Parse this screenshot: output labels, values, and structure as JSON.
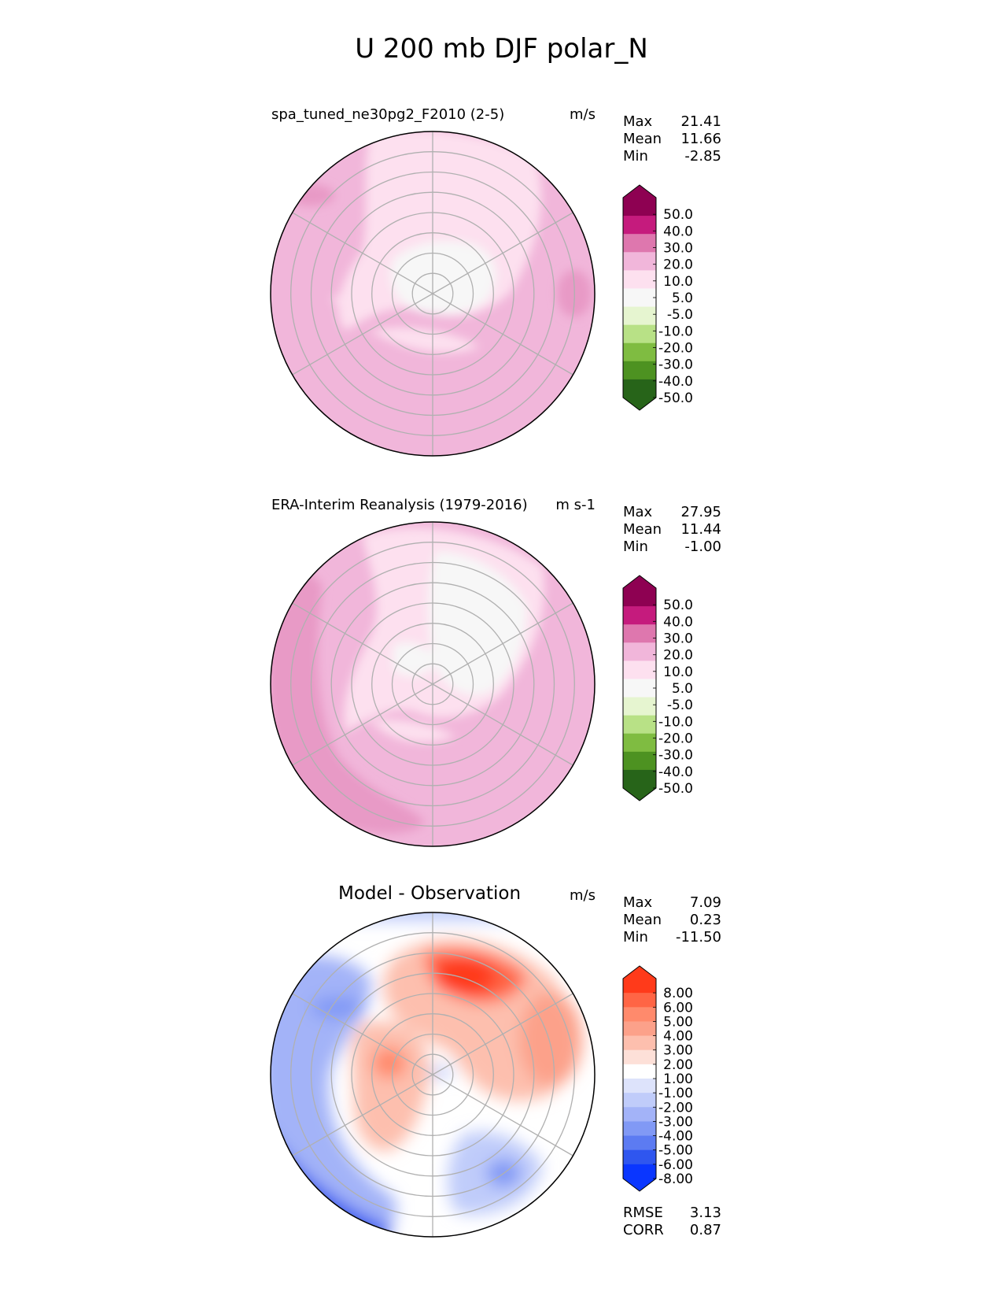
{
  "title": "U 200 mb DJF polar_N",
  "chart_data": [
    {
      "type": "polar-contour-map",
      "title": "spa_tuned_ne30pg2_F2010 (2-5)",
      "units": "m/s",
      "stats": [
        {
          "label": "Max",
          "value": "21.41"
        },
        {
          "label": "Mean",
          "value": "11.66"
        },
        {
          "label": "Min",
          "value": "-2.85"
        }
      ],
      "colorbar": {
        "labels": [
          "50.0",
          "40.0",
          "30.0",
          "20.0",
          "10.0",
          "5.0",
          "-5.0",
          "-10.0",
          "-20.0",
          "-30.0",
          "-40.0",
          "-50.0"
        ],
        "colors": [
          "#8e0152",
          "#c51b7d",
          "#de77ae",
          "#f1b6da",
          "#fde0ef",
          "#f7f7f7",
          "#e6f5d0",
          "#b8e186",
          "#7fbc41",
          "#4d9221",
          "#276419"
        ]
      }
    },
    {
      "type": "polar-contour-map",
      "title": "ERA-Interim Reanalysis (1979-2016)",
      "units": "m s-1",
      "stats": [
        {
          "label": "Max",
          "value": "27.95"
        },
        {
          "label": "Mean",
          "value": "11.44"
        },
        {
          "label": "Min",
          "value": "-1.00"
        }
      ],
      "colorbar": {
        "labels": [
          "50.0",
          "40.0",
          "30.0",
          "20.0",
          "10.0",
          "5.0",
          "-5.0",
          "-10.0",
          "-20.0",
          "-30.0",
          "-40.0",
          "-50.0"
        ],
        "colors": [
          "#8e0152",
          "#c51b7d",
          "#de77ae",
          "#f1b6da",
          "#fde0ef",
          "#f7f7f7",
          "#e6f5d0",
          "#b8e186",
          "#7fbc41",
          "#4d9221",
          "#276419"
        ]
      }
    },
    {
      "type": "polar-contour-map",
      "title": "Model - Observation",
      "units": "m/s",
      "stats": [
        {
          "label": "Max",
          "value": "7.09"
        },
        {
          "label": "Mean",
          "value": "0.23"
        },
        {
          "label": "Min",
          "value": "-11.50"
        }
      ],
      "metrics": [
        {
          "label": "RMSE",
          "value": "3.13"
        },
        {
          "label": "CORR",
          "value": "0.87"
        }
      ],
      "colorbar": {
        "labels": [
          "8.00",
          "6.00",
          "5.00",
          "4.00",
          "3.00",
          "2.00",
          "1.00",
          "-1.00",
          "-2.00",
          "-3.00",
          "-4.00",
          "-5.00",
          "-6.00",
          "-8.00"
        ],
        "colors": [
          "#ff3a1a",
          "#ff6545",
          "#ff8a6c",
          "#fca18a",
          "#fdbfae",
          "#fde0d8",
          "#ffffff",
          "#dde3fb",
          "#c0ccfa",
          "#a3b3f8",
          "#8199f5",
          "#5c7bf2",
          "#2f56ef",
          "#0a36ff"
        ]
      }
    }
  ],
  "colors": {
    "land_outline": "#1a1a1a",
    "gridline": "#b0b0b0",
    "pink_light": "#fde0ef",
    "pink_mid": "#f1b6da",
    "pink_strong": "#e89ac6",
    "neutral": "#f7f7f7",
    "red_strong": "#ff4a2a",
    "blue_strong": "#0a36ff"
  }
}
